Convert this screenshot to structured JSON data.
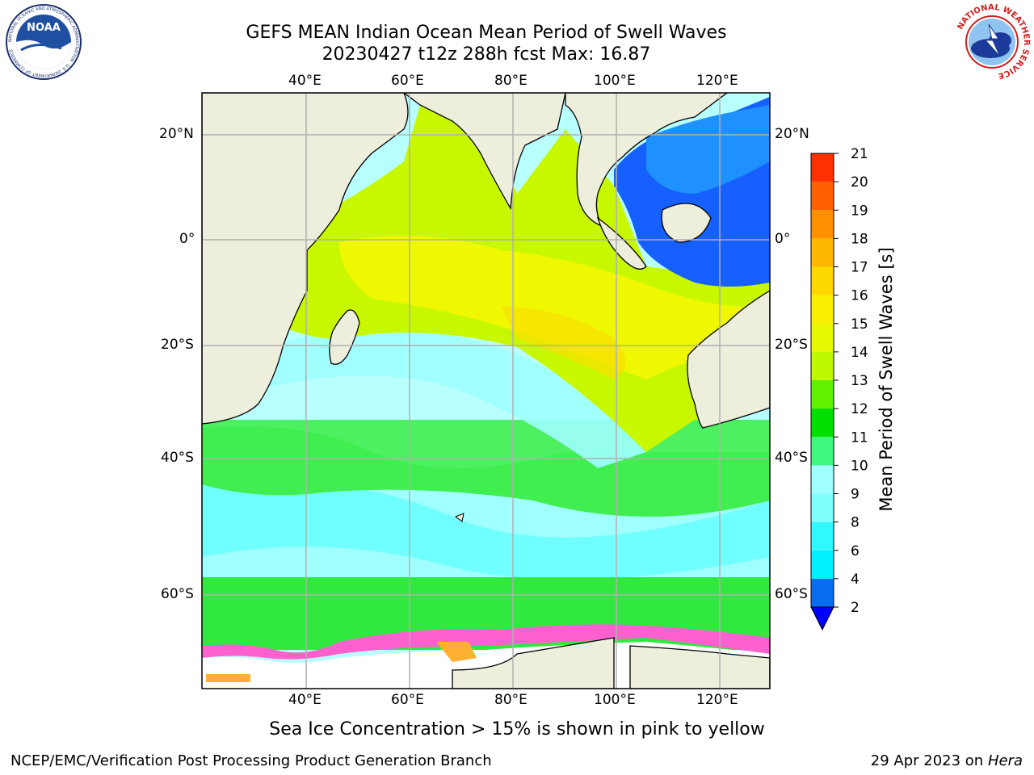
{
  "header": {
    "title_line1": "GEFS MEAN Indian Ocean Mean Period of Swell Waves",
    "title_line2": "20230427 t12z 288h fcst   Max: 16.87"
  },
  "logos": {
    "noaa_text": "NOAA",
    "noaa_ring_text": "NATIONAL OCEANIC AND ATMOSPHERIC ADMINISTRATION · U.S. DEPARTMENT OF COMMERCE",
    "nws_ring_text": "NATIONAL WEATHER SERVICE"
  },
  "map": {
    "lon_labels_top": [
      "40°E",
      "60°E",
      "80°E",
      "100°E",
      "120°E"
    ],
    "lon_labels_bottom": [
      "40°E",
      "60°E",
      "80°E",
      "100°E",
      "120°E"
    ],
    "lat_labels_left": [
      "20°N",
      "0°",
      "20°S",
      "40°S",
      "60°S"
    ],
    "lat_labels_right": [
      "20°N",
      "0°",
      "20°S",
      "40°S",
      "60°S"
    ],
    "land_color": "#eeeedd",
    "grid_color": "#b0b0b0"
  },
  "colorbar": {
    "label": "Mean Period of Swell Waves [s]",
    "ticks": [
      "2",
      "4",
      "6",
      "8",
      "9",
      "10",
      "11",
      "12",
      "13",
      "14",
      "15",
      "16",
      "17",
      "18",
      "19",
      "20",
      "21"
    ],
    "colors": [
      "#0a6cf0",
      "#00f0ff",
      "#30f8ff",
      "#80ffff",
      "#a0ffff",
      "#40f880",
      "#00e000",
      "#60f000",
      "#c0f800",
      "#e8f800",
      "#f8f000",
      "#ffd800",
      "#ffb800",
      "#ff9000",
      "#ff6000",
      "#ff3000",
      "#ff0000"
    ]
  },
  "caption": "Sea Ice Concentration > 15% is shown in pink to yellow",
  "footer": {
    "left": "NCEP/EMC/Verification Post Processing Product Generation Branch",
    "right_prefix": "29 Apr 2023 on ",
    "right_host": "Hera"
  }
}
